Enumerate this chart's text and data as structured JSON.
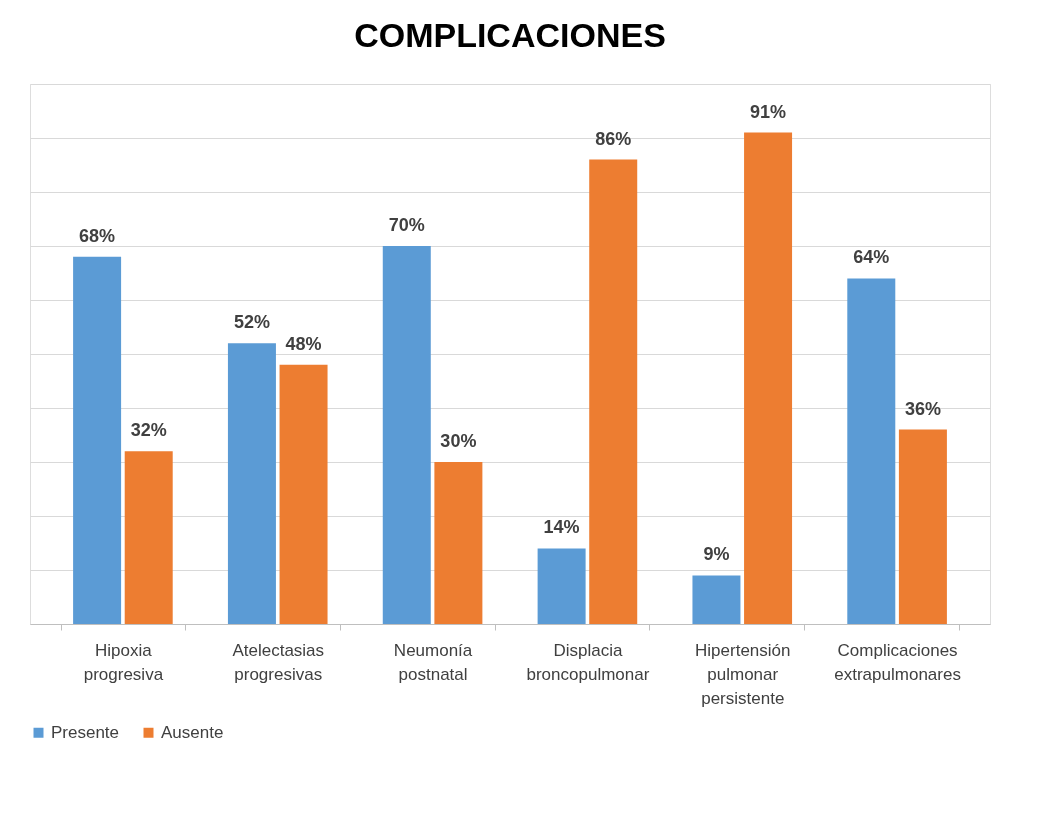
{
  "chart_data": {
    "type": "bar",
    "title": "COMPLICACIONES",
    "categories": [
      "Hipoxia progresiva",
      "Atelectasias progresivas",
      "Neumonía postnatal",
      "Displacia broncopulmonar",
      "Hipertensión pulmonar persistente",
      "Complicaciones extrapulmonares"
    ],
    "series": [
      {
        "name": "Presente",
        "color": "#5b9bd5",
        "values": [
          68,
          52,
          70,
          14,
          9,
          64
        ],
        "value_labels": [
          "68%",
          "52%",
          "70%",
          "14%",
          "9%",
          "64%"
        ]
      },
      {
        "name": "Ausente",
        "color": "#ed7d31",
        "values": [
          32,
          48,
          30,
          86,
          91,
          36
        ],
        "value_labels": [
          "32%",
          "48%",
          "30%",
          "86%",
          "91%",
          "36%"
        ]
      }
    ],
    "tick_labels": "x",
    "grid": "y",
    "legend": "bottom"
  }
}
